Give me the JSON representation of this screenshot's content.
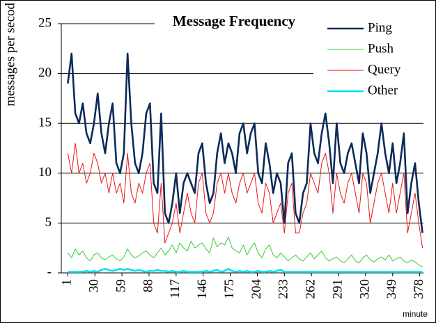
{
  "chart_data": {
    "type": "line",
    "title": "Message Frequency",
    "y_label": "messages per secod",
    "x_label": "minute",
    "x": [
      1,
      5,
      9,
      13,
      17,
      21,
      25,
      29,
      33,
      37,
      41,
      45,
      49,
      53,
      57,
      61,
      65,
      69,
      73,
      77,
      81,
      85,
      89,
      93,
      97,
      101,
      105,
      109,
      113,
      117,
      121,
      125,
      129,
      133,
      137,
      141,
      145,
      149,
      153,
      157,
      161,
      165,
      169,
      173,
      177,
      181,
      185,
      189,
      193,
      197,
      201,
      205,
      209,
      213,
      217,
      221,
      225,
      229,
      233,
      237,
      241,
      245,
      249,
      253,
      257,
      261,
      265,
      269,
      273,
      277,
      281,
      285,
      289,
      293,
      297,
      301,
      305,
      309,
      313,
      317,
      321,
      325,
      329,
      333,
      337,
      341,
      345,
      349,
      353,
      357,
      361,
      365,
      369,
      373,
      377,
      381
    ],
    "series": [
      {
        "name": "Ping",
        "color": "#0b2a5a",
        "values": [
          19,
          22,
          16,
          15,
          17,
          14,
          13,
          15,
          18,
          14,
          12,
          15,
          17,
          11,
          10,
          12,
          22,
          15,
          11,
          10,
          12,
          16,
          17,
          9,
          8,
          16,
          6,
          5,
          7,
          10,
          6,
          9,
          10,
          9,
          8,
          12,
          13,
          9,
          7,
          8,
          12,
          14,
          11,
          13,
          12,
          10,
          14,
          15,
          12,
          14,
          15,
          10,
          9,
          13,
          11,
          8,
          10,
          9,
          5,
          11,
          12,
          6,
          5,
          8,
          9,
          15,
          12,
          11,
          14,
          16,
          13,
          9,
          15,
          11,
          10,
          12,
          13,
          11,
          9,
          14,
          12,
          8,
          10,
          12,
          15,
          12,
          10,
          13,
          9,
          11,
          14,
          6,
          9,
          11,
          7,
          4
        ]
      },
      {
        "name": "Push",
        "color": "#33cc33",
        "values": [
          2,
          1.5,
          2.4,
          1.8,
          2.2,
          1.5,
          1.2,
          1.8,
          2,
          1.5,
          1.3,
          1.6,
          1.8,
          1.4,
          1.2,
          1.6,
          2.4,
          1.8,
          1.5,
          1.7,
          2,
          2.2,
          1.8,
          1.5,
          2,
          2.5,
          1.8,
          2.2,
          2.8,
          2,
          3,
          2.5,
          2.2,
          3.2,
          2.5,
          2.8,
          3,
          2.4,
          2,
          3.5,
          2.6,
          3,
          2.8,
          3.6,
          2.5,
          2.2,
          2,
          2.8,
          1.8,
          2.5,
          3,
          2,
          1.5,
          2.4,
          2.8,
          1.8,
          1.5,
          2,
          1.6,
          1.2,
          1.5,
          1.8,
          1.4,
          1.2,
          1.6,
          2,
          1.4,
          1.8,
          2.2,
          1.5,
          1.2,
          1.4,
          1.6,
          1.2,
          1,
          1.4,
          1.8,
          1.2,
          1,
          1.5,
          1.8,
          1.3,
          1.1,
          1.4,
          1.6,
          1.3,
          1.8,
          1.2,
          1.4,
          1.6,
          1.2,
          1,
          1.3,
          1.1,
          0.8,
          0.6
        ]
      },
      {
        "name": "Query",
        "color": "#ee1111",
        "values": [
          12,
          10,
          13,
          10,
          11,
          9,
          10,
          12,
          11,
          9,
          10,
          8,
          10,
          8,
          9,
          7,
          12,
          8,
          7,
          9,
          8,
          10,
          11,
          5,
          4,
          9,
          3,
          4,
          5,
          7,
          4,
          6,
          8,
          6,
          5,
          9,
          10,
          6,
          5,
          6,
          9,
          10,
          8,
          10,
          8,
          7,
          9,
          10,
          8,
          9,
          10,
          7,
          6,
          9,
          8,
          5,
          6,
          7,
          4,
          8,
          9,
          4,
          4,
          6,
          7,
          10,
          9,
          8,
          11,
          12,
          10,
          6,
          10,
          8,
          7,
          9,
          10,
          8,
          6,
          10,
          9,
          5,
          7,
          9,
          10,
          8,
          6,
          9,
          6,
          8,
          10,
          4,
          6,
          8,
          5,
          2.5
        ]
      },
      {
        "name": "Other",
        "color": "#00e0ee",
        "values": [
          0.1,
          0.1,
          0.1,
          0.1,
          0.1,
          0.2,
          0.1,
          0.2,
          0.1,
          0.3,
          0.4,
          0.3,
          0.2,
          0.3,
          0.4,
          0.3,
          0.4,
          0.3,
          0.2,
          0.3,
          0.2,
          0.1,
          0.2,
          0.2,
          0.3,
          0.2,
          0.2,
          0.1,
          0.2,
          0.1,
          0.1,
          0.2,
          0.1,
          0.1,
          0.1,
          0.1,
          0.1,
          0.2,
          0.1,
          0.2,
          0.3,
          0.1,
          0.2,
          0.4,
          0.2,
          0.1,
          0.2,
          0.1,
          0.2,
          0.1,
          0.1,
          0.2,
          0.1,
          0.1,
          0.2,
          0.1,
          0.2,
          0.3,
          0.1,
          0.1,
          0.1,
          0.1,
          0.1,
          0.1,
          0.1,
          0.1,
          0.1,
          0.1,
          0.1,
          0.1,
          0.1,
          0.1,
          0.1,
          0.1,
          0.1,
          0.1,
          0.1,
          0.1,
          0.1,
          0.1,
          0.1,
          0.1,
          0.1,
          0.1,
          0.1,
          0.1,
          0.1,
          0.1,
          0.1,
          0.1,
          0.1,
          0.1,
          0.1,
          0.1,
          0.1,
          0.1
        ]
      }
    ],
    "xlim": [
      -6,
      382
    ],
    "xticks": [
      1,
      30,
      59,
      88,
      117,
      146,
      175,
      204,
      233,
      262,
      291,
      320,
      349,
      378
    ],
    "ylim": [
      0,
      25
    ],
    "yticks": [
      {
        "value": 0,
        "label": "-"
      },
      5,
      10,
      15,
      20,
      25
    ],
    "grid": true
  }
}
